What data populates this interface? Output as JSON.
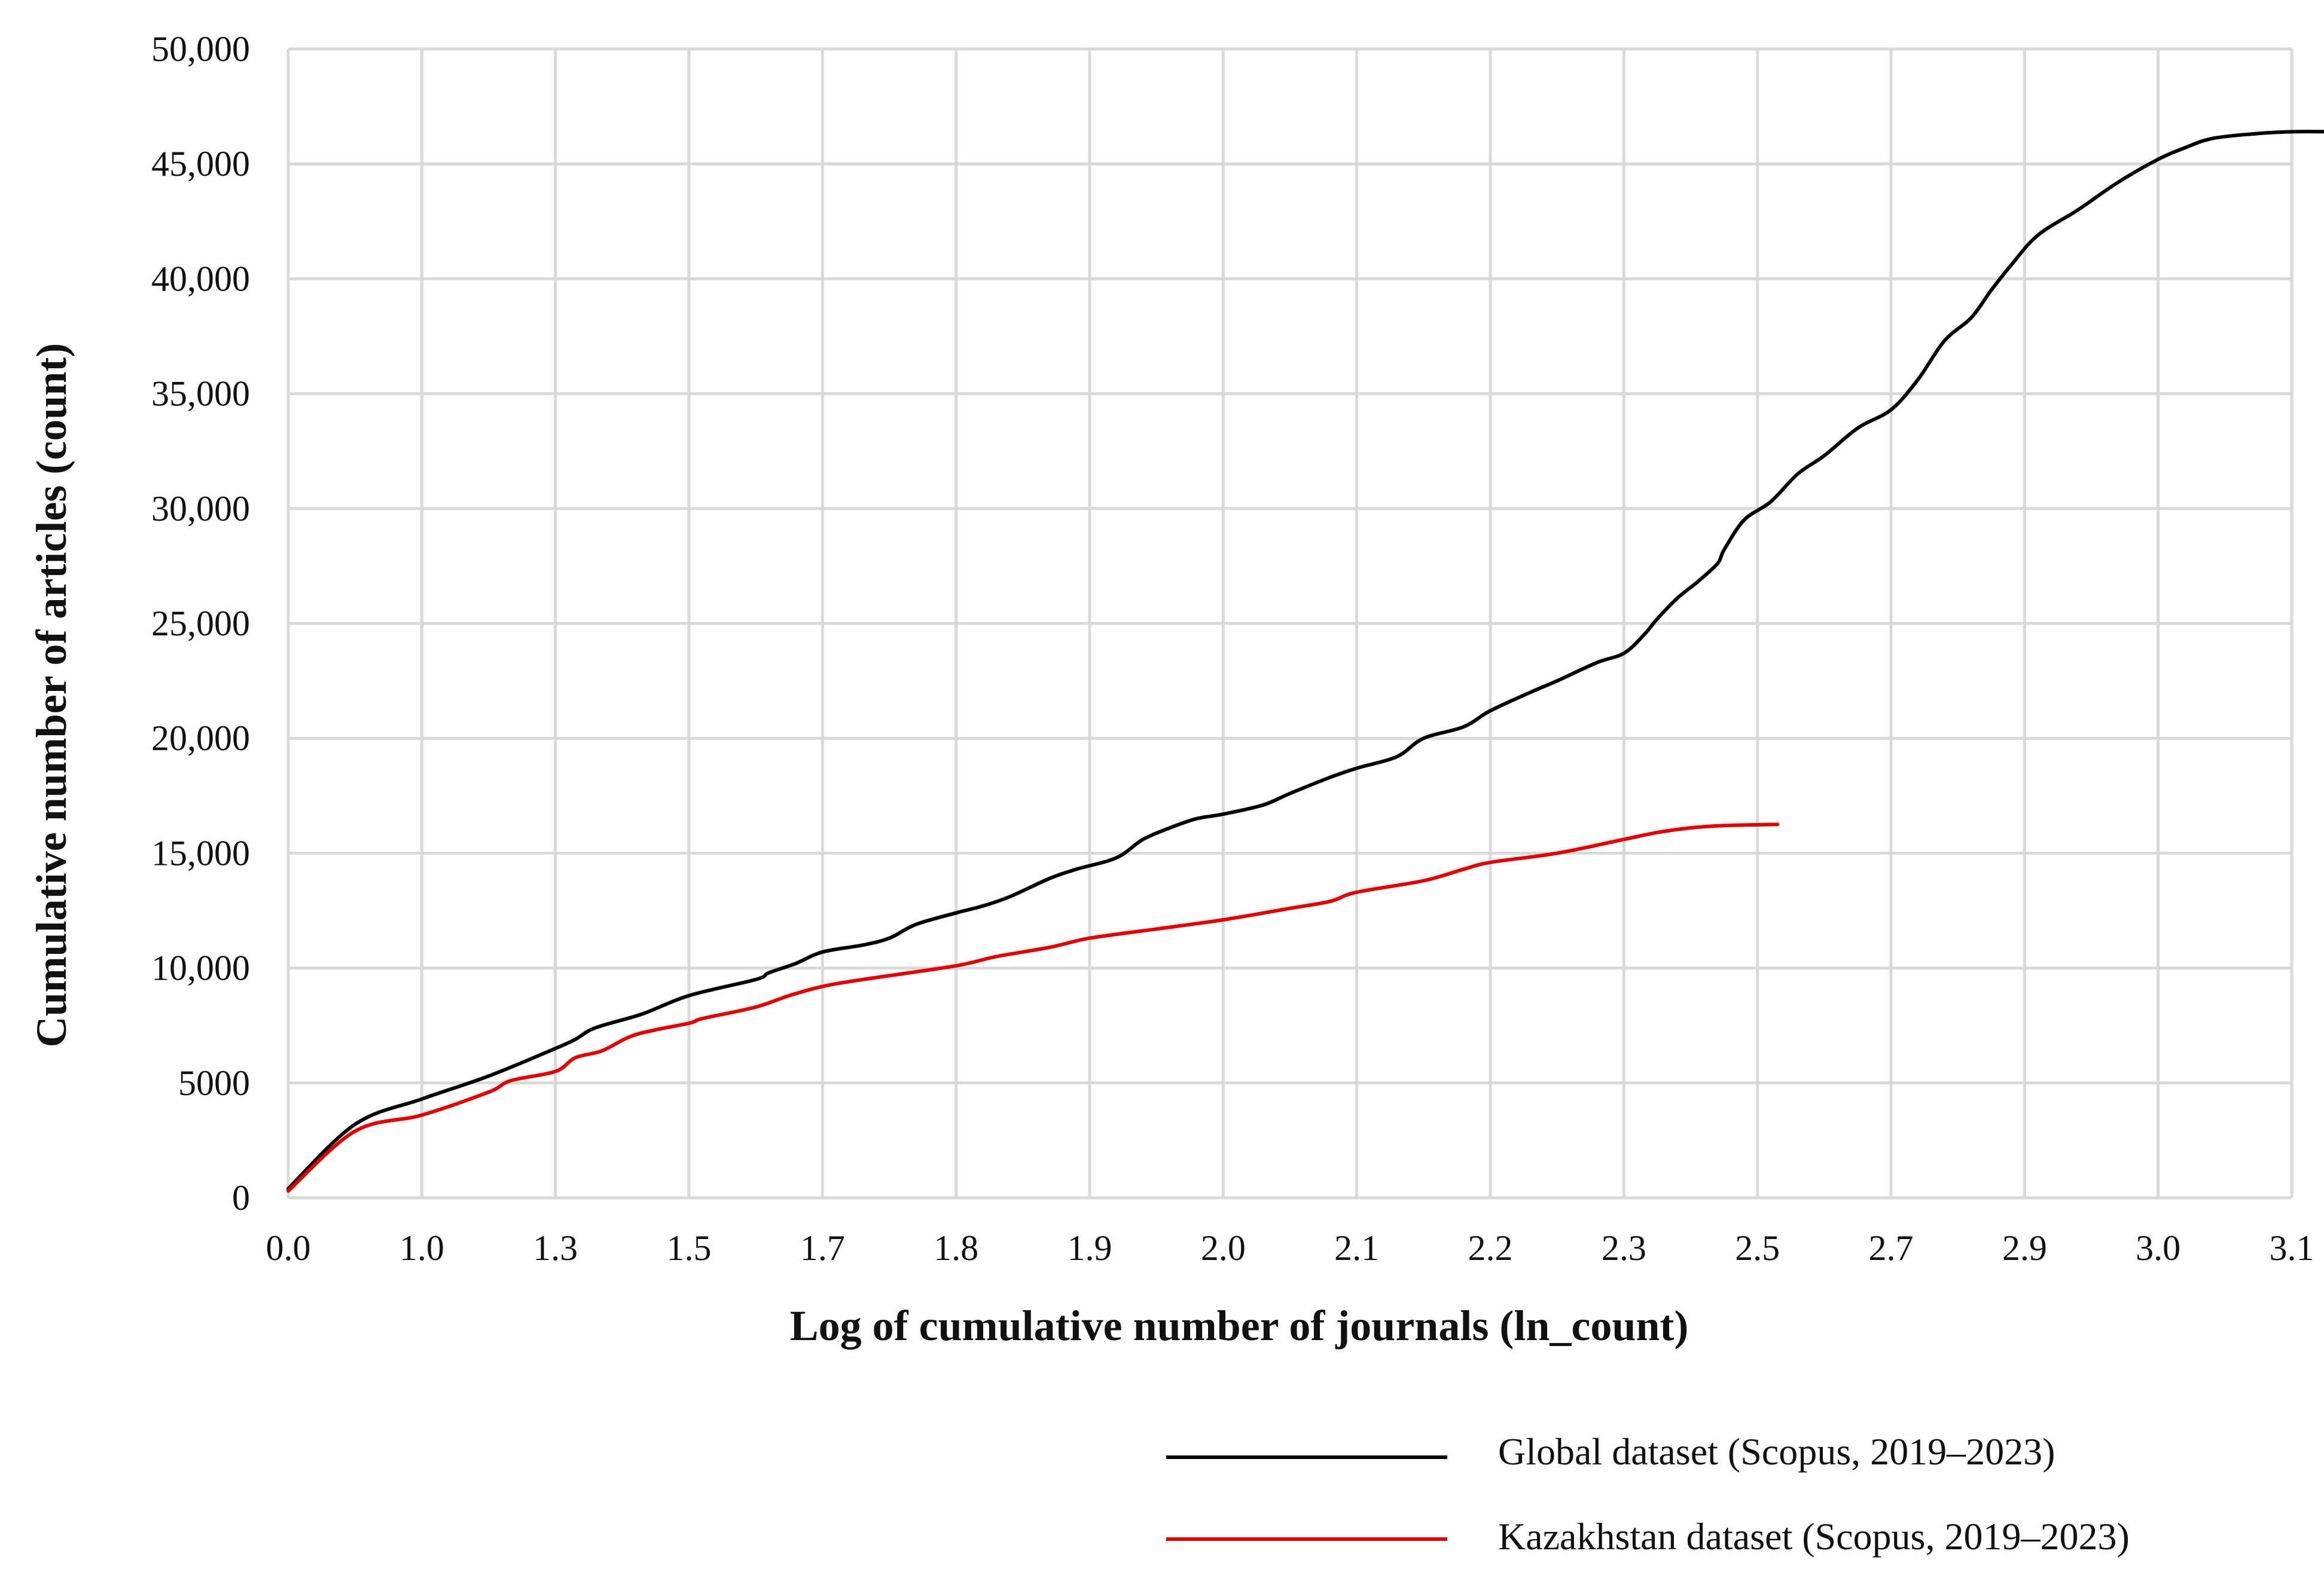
{
  "chart_data": {
    "type": "line",
    "title": "",
    "xlabel": "Log of cumulative number of journals (ln_count)",
    "ylabel": "Cumulative number of articles (count)",
    "x_ticks": [
      "0.0",
      "1.0",
      "1.3",
      "1.5",
      "1.7",
      "1.8",
      "1.9",
      "2.0",
      "2.1",
      "2.2",
      "2.3",
      "2.5",
      "2.7",
      "2.9",
      "3.0",
      "3.1"
    ],
    "y_ticks": [
      "0",
      "5000",
      "10,000",
      "15,000",
      "20,000",
      "25,000",
      "30,000",
      "35,000",
      "40,000",
      "45,000",
      "50,000"
    ],
    "ylim": [
      0,
      50000
    ],
    "grid": true,
    "legend_position": "bottom-right",
    "series": [
      {
        "name": "Global dataset (Scopus, 2019–2023)",
        "color": "#000000",
        "points": [
          [
            0.0,
            400
          ],
          [
            0.5,
            3200
          ],
          [
            1.0,
            4300
          ],
          [
            1.15,
            5300
          ],
          [
            1.3,
            6500
          ],
          [
            1.33,
            6900
          ],
          [
            1.36,
            7400
          ],
          [
            1.43,
            8000
          ],
          [
            1.5,
            8800
          ],
          [
            1.6,
            9500
          ],
          [
            1.62,
            9800
          ],
          [
            1.66,
            10200
          ],
          [
            1.7,
            10700
          ],
          [
            1.73,
            11000
          ],
          [
            1.75,
            11300
          ],
          [
            1.77,
            11900
          ],
          [
            1.8,
            12400
          ],
          [
            1.82,
            12700
          ],
          [
            1.84,
            13100
          ],
          [
            1.87,
            13900
          ],
          [
            1.89,
            14300
          ],
          [
            1.92,
            14800
          ],
          [
            1.94,
            15600
          ],
          [
            1.96,
            16100
          ],
          [
            1.98,
            16500
          ],
          [
            2.0,
            16700
          ],
          [
            2.03,
            17100
          ],
          [
            2.05,
            17600
          ],
          [
            2.08,
            18300
          ],
          [
            2.1,
            18700
          ],
          [
            2.13,
            19200
          ],
          [
            2.15,
            20000
          ],
          [
            2.18,
            20500
          ],
          [
            2.2,
            21200
          ],
          [
            2.23,
            22000
          ],
          [
            2.25,
            22500
          ],
          [
            2.28,
            23300
          ],
          [
            2.3,
            23700
          ],
          [
            2.33,
            24500
          ],
          [
            2.35,
            25200
          ],
          [
            2.38,
            26100
          ],
          [
            2.41,
            26800
          ],
          [
            2.44,
            27600
          ],
          [
            2.45,
            28200
          ],
          [
            2.48,
            29500
          ],
          [
            2.52,
            30300
          ],
          [
            2.56,
            31500
          ],
          [
            2.6,
            32300
          ],
          [
            2.65,
            33500
          ],
          [
            2.7,
            34300
          ],
          [
            2.74,
            35600
          ],
          [
            2.78,
            37300
          ],
          [
            2.82,
            38300
          ],
          [
            2.85,
            39500
          ],
          [
            2.88,
            40600
          ],
          [
            2.91,
            41900
          ],
          [
            2.94,
            43000
          ],
          [
            2.97,
            44200
          ],
          [
            3.0,
            45200
          ],
          [
            3.02,
            45700
          ],
          [
            3.04,
            46100
          ],
          [
            3.07,
            46300
          ],
          [
            3.1,
            46400
          ],
          [
            3.13,
            46400
          ]
        ]
      },
      {
        "name": "Kazakhstan dataset (Scopus, 2019–2023)",
        "color": "#e00000",
        "points": [
          [
            0.0,
            300
          ],
          [
            0.5,
            2900
          ],
          [
            1.0,
            3600
          ],
          [
            1.15,
            4600
          ],
          [
            1.2,
            5100
          ],
          [
            1.3,
            5500
          ],
          [
            1.33,
            6100
          ],
          [
            1.37,
            6400
          ],
          [
            1.42,
            7100
          ],
          [
            1.5,
            7600
          ],
          [
            1.52,
            7800
          ],
          [
            1.6,
            8300
          ],
          [
            1.65,
            8800
          ],
          [
            1.7,
            9200
          ],
          [
            1.73,
            9500
          ],
          [
            1.8,
            10100
          ],
          [
            1.83,
            10500
          ],
          [
            1.87,
            10900
          ],
          [
            1.9,
            11300
          ],
          [
            1.95,
            11700
          ],
          [
            2.0,
            12100
          ],
          [
            2.05,
            12600
          ],
          [
            2.08,
            12900
          ],
          [
            2.1,
            13300
          ],
          [
            2.15,
            13800
          ],
          [
            2.18,
            14300
          ],
          [
            2.2,
            14600
          ],
          [
            2.25,
            15000
          ],
          [
            2.3,
            15600
          ],
          [
            2.35,
            15900
          ],
          [
            2.4,
            16100
          ],
          [
            2.45,
            16200
          ],
          [
            2.53,
            16250
          ]
        ]
      }
    ]
  }
}
